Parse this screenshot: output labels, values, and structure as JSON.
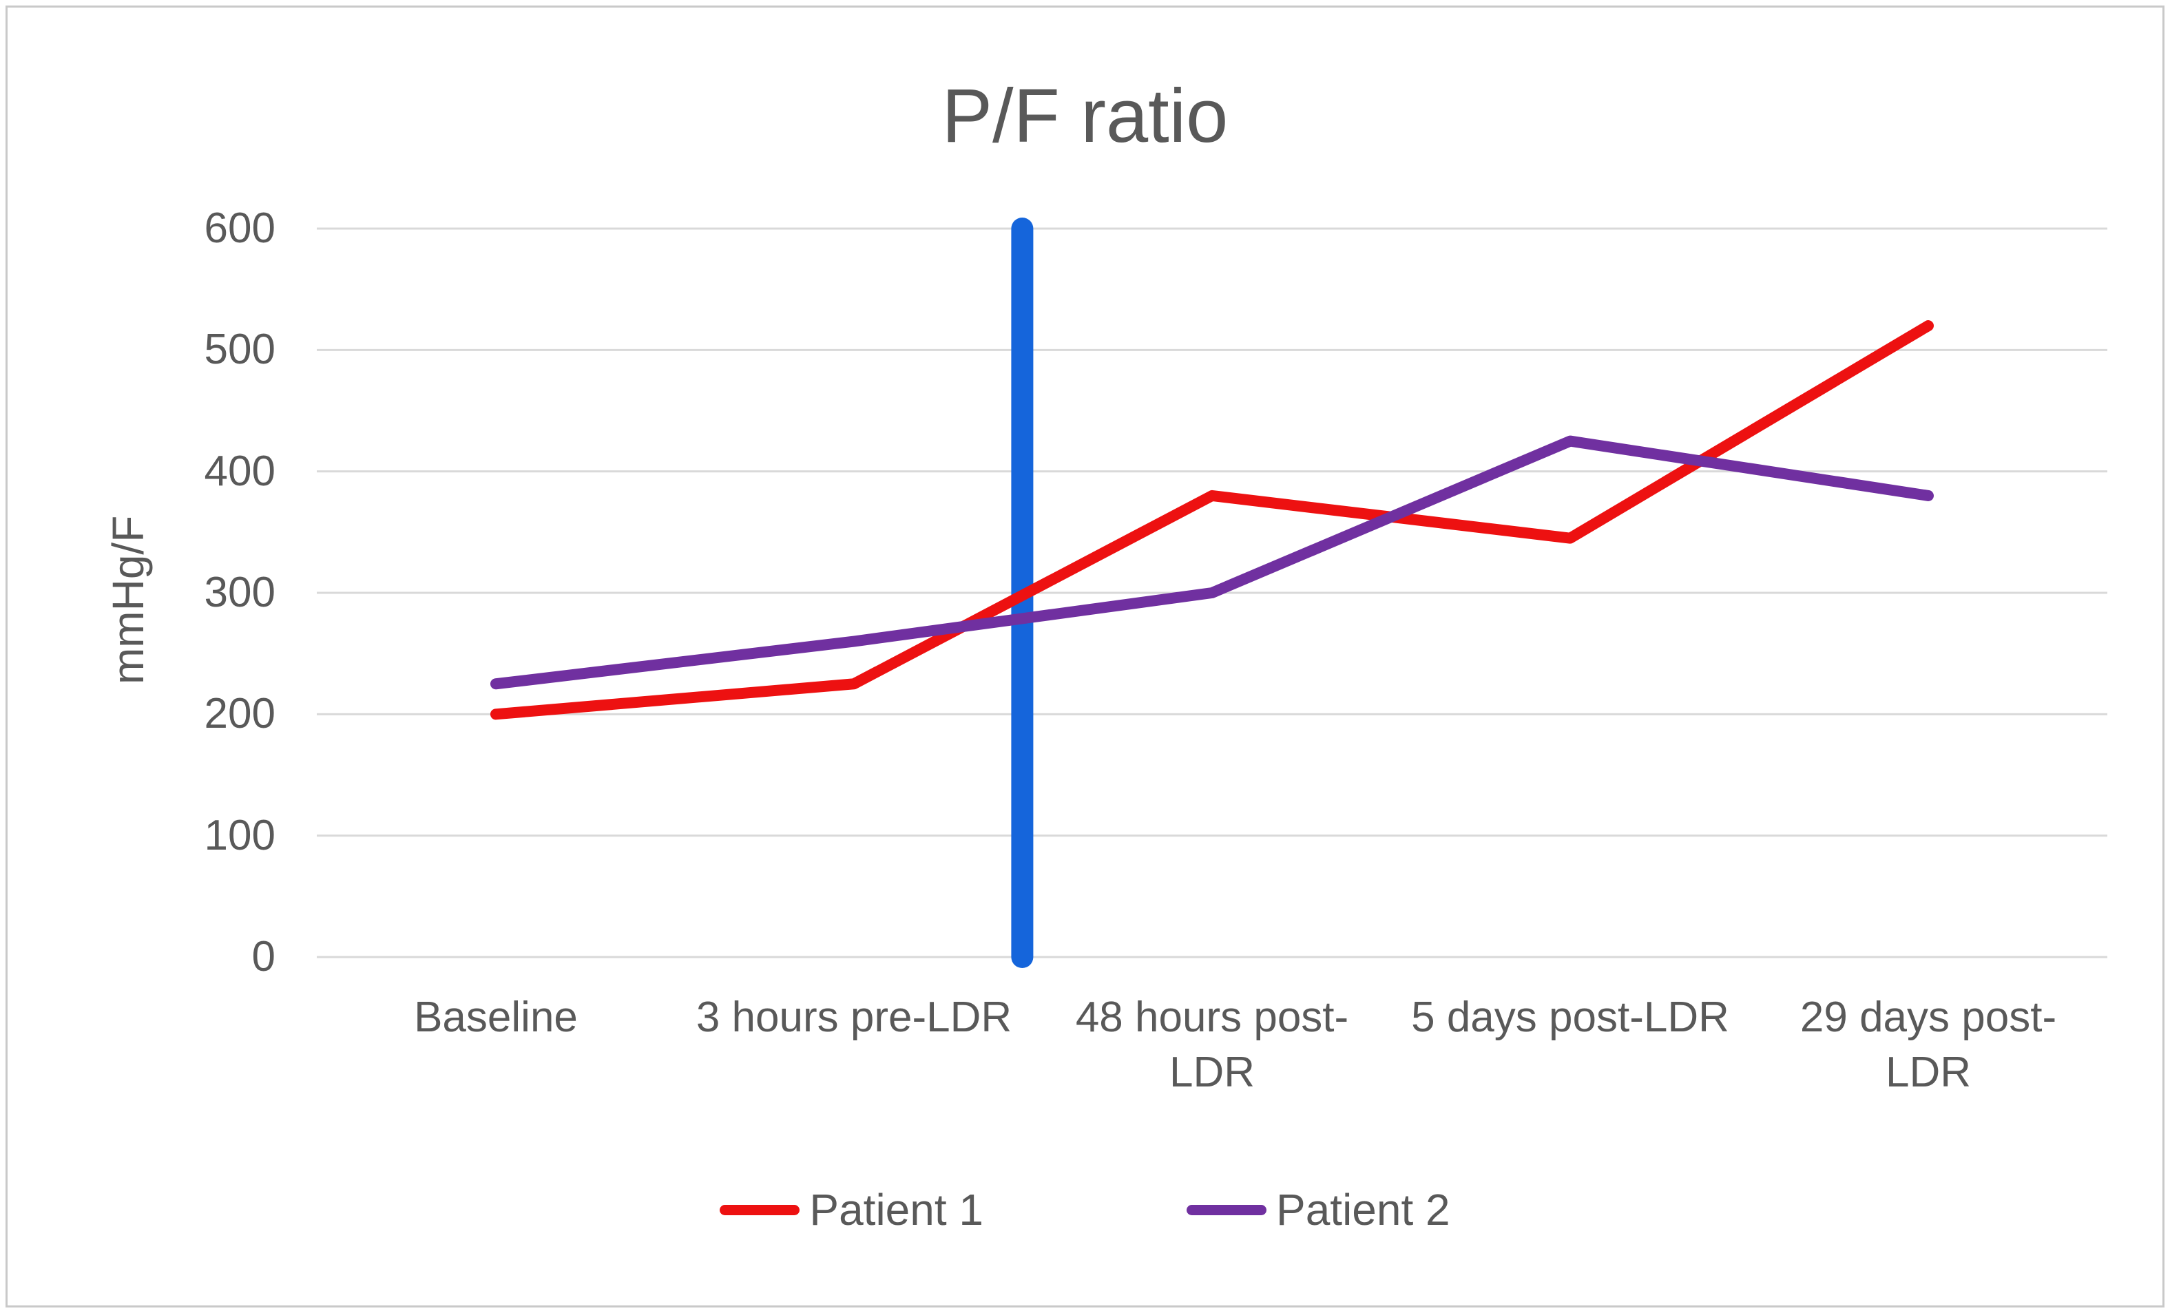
{
  "chart_data": {
    "type": "line",
    "title": "P/F ratio",
    "ylabel": "mmHg/F",
    "xlabel": "",
    "ylim": [
      0,
      600
    ],
    "y_ticks": [
      0,
      100,
      200,
      300,
      400,
      500,
      600
    ],
    "grid": true,
    "legend_position": "bottom",
    "categories": [
      "Baseline",
      "3 hours pre-LDR",
      "48 hours post-\nLDR",
      "5 days post-LDR",
      "29 days post-\nLDR"
    ],
    "series": [
      {
        "name": "Patient 1",
        "color": "#ed1111",
        "values": [
          200,
          225,
          380,
          345,
          520
        ]
      },
      {
        "name": "Patient 2",
        "color": "#7030a0",
        "values": [
          225,
          260,
          300,
          425,
          380
        ]
      }
    ],
    "annotations": [
      {
        "type": "vertical-bar",
        "name": "ldr-marker-bar",
        "color": "#1565db",
        "x_index": 1.47,
        "y_from": 0,
        "y_to": 600
      }
    ],
    "colors": {
      "text": "#595959",
      "grid": "#d9d9d9",
      "border": "#c9c9c9"
    }
  }
}
